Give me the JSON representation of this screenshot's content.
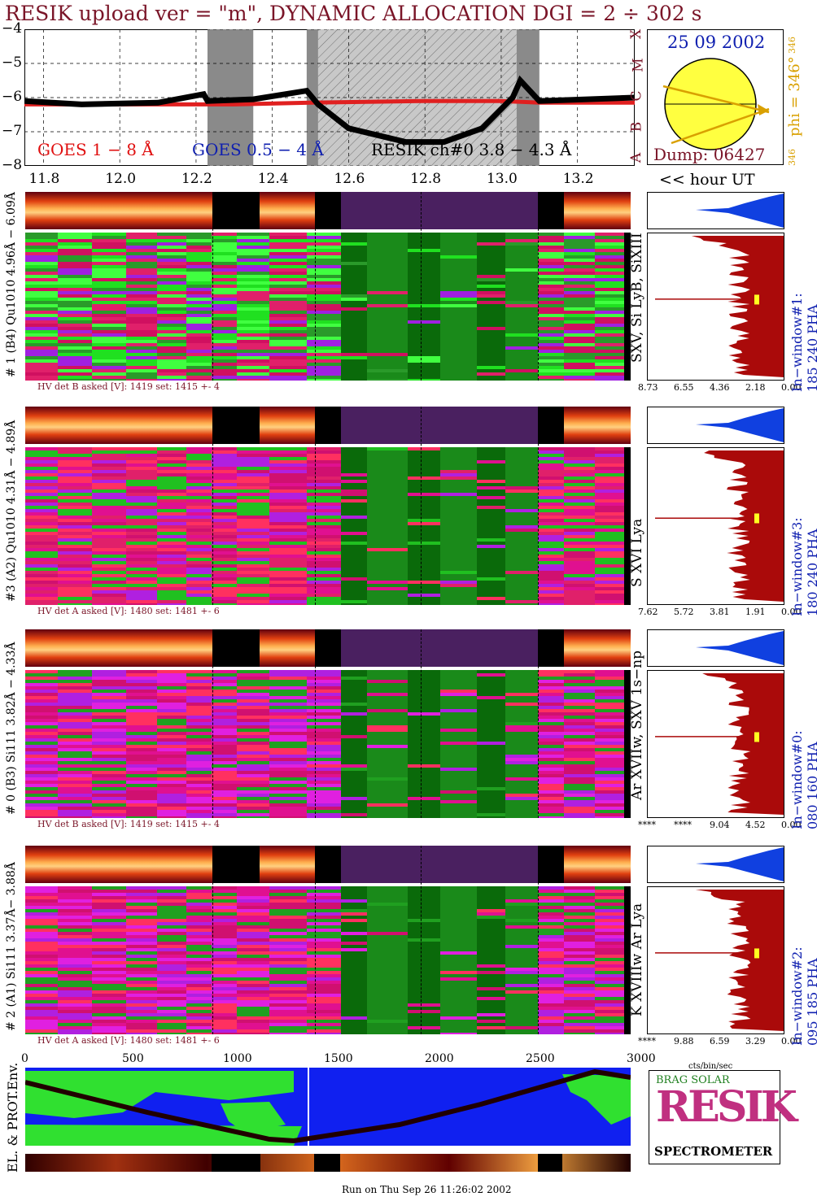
{
  "title": "RESIK upload ver = \"m\", DYNAMIC ALLOCATION  DGI =   2 ÷ 302 s",
  "colors": {
    "goes_long": "#e02020",
    "goes_short": "#1030d0",
    "resik": "#000000",
    "dark_red": "#7a1528",
    "pha_red": "#aa0a0a",
    "pha_blue": "#1040e0"
  },
  "goes_panel": {
    "y_ticks": [
      "−4",
      "−5",
      "−6",
      "−7",
      "−8"
    ],
    "class_letters": [
      "X",
      "M",
      "C",
      "B",
      "A"
    ],
    "legend": {
      "goes_long": "GOES 1 − 8 Å",
      "goes_short": "GOES 0.5 − 4 Å",
      "resik": "RESIK ch#0  3.8 − 4.3 Å"
    },
    "x_ticks": [
      "11.8",
      "12.0",
      "12.2",
      "12.4",
      "12.6",
      "12.8",
      "13.0",
      "13.2"
    ],
    "x_unit": "<< hour UT"
  },
  "chart_data": {
    "type": "line",
    "title": "RESIK upload ver = \"m\", DYNAMIC ALLOCATION  DGI =   2 ÷ 302 s",
    "xlabel": "hour UT",
    "ylabel": "",
    "xlim": [
      11.75,
      13.35
    ],
    "ylim": [
      -8,
      -4
    ],
    "gray_intervals": [
      [
        12.23,
        12.35
      ],
      [
        12.49,
        12.52
      ],
      [
        13.04,
        13.1
      ]
    ],
    "hatched_interval": [
      12.52,
      13.04
    ],
    "series": [
      {
        "name": "GOES 1 − 8 Å",
        "x": [
          11.75,
          12.0,
          12.3,
          12.5,
          12.8,
          13.0,
          13.1,
          13.35
        ],
        "values": [
          -6.2,
          -6.2,
          -6.2,
          -6.15,
          -6.1,
          -6.1,
          -6.15,
          -6.15
        ]
      },
      {
        "name": "RESIK ch#0  3.8 − 4.3 Å",
        "x": [
          11.75,
          11.9,
          12.1,
          12.22,
          12.23,
          12.35,
          12.49,
          12.52,
          12.6,
          12.75,
          12.85,
          12.95,
          13.03,
          13.05,
          13.1,
          13.35
        ],
        "values": [
          -6.1,
          -6.2,
          -6.15,
          -5.9,
          -6.1,
          -6.05,
          -5.8,
          -6.2,
          -6.9,
          -7.3,
          -7.3,
          -6.9,
          -6.0,
          -5.5,
          -6.1,
          -6.0
        ]
      }
    ]
  },
  "sun_panel": {
    "date": "25 09 2002",
    "phi": "phi = 346°",
    "phi_top": "346",
    "phi_bottom": "346",
    "dump": "Dump: 06427"
  },
  "detectors": [
    {
      "label": "# 1 (B4) Qu1010 4.96Å − 6.09Å",
      "lines": "SXV, Si LyB, SiXIII",
      "hv": "HV det B asked [V]:  1419 set:  1415  +-    4",
      "window": "In−window#1:  185 240 PHA",
      "pha_ticks": [
        "8.73",
        "6.55",
        "4.36",
        "2.18",
        "0.00"
      ]
    },
    {
      "label": "#3 (A2) Qu1010  4.31Å − 4.89Å",
      "lines": "S XVI Lya",
      "hv": "HV det A asked [V]:  1480 set:  1481  +-    6",
      "window": "In−window#3:  180 240 PHA",
      "pha_ticks": [
        "7.62",
        "5.72",
        "3.81",
        "1.91",
        "0.00"
      ]
    },
    {
      "label": "# 0 (B3) Si111  3.82Å − 4.33Å",
      "lines": "Ar XVIIw,  SXV 1s−np",
      "hv": "HV det B asked [V]:  1419 set:  1415  +-    4",
      "window": "In−window#0:  080 160 PHA",
      "pha_ticks": [
        "****",
        "****",
        "9.04",
        "4.52",
        "0.00"
      ]
    },
    {
      "label": "# 2 (A1) Si111  3.37Å−  3.88Å",
      "lines": "K XVIIIw  Ar Lya",
      "hv": "HV det A asked [V]:  1480 set:  1481  +-    6",
      "window": "In−window#2:  095 185 PHA",
      "pha_ticks": [
        "****",
        "9.88",
        "6.59",
        "3.29",
        "0.00"
      ]
    }
  ],
  "bottom_axis": {
    "ticks": [
      "0",
      "500",
      "1000",
      "1500",
      "2000",
      "2500",
      "3000"
    ],
    "unit": "cts/bin/sec"
  },
  "env_label": "EL. & PROT.Env.",
  "logo": {
    "letters": "RESIK",
    "sub": "BRAG SOLAR",
    "caption": "SPECTROMETER"
  },
  "footer": "Run on Thu Sep 26 11:26:02 2002"
}
